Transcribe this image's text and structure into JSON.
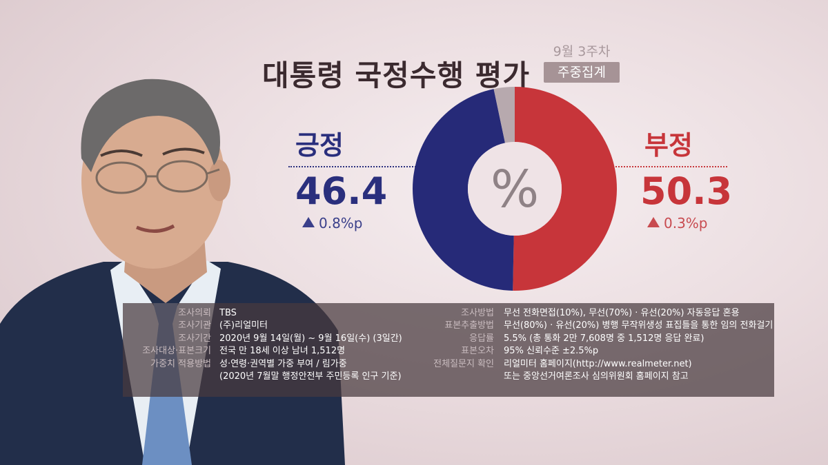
{
  "header": {
    "title": "대통령 국정수행 평가",
    "week": "9월 3주차",
    "aggregate_badge": "주중집계"
  },
  "chart_data": {
    "type": "pie",
    "title": "대통령 국정수행 평가",
    "center_label": "%",
    "slices": [
      {
        "label": "부정",
        "value": 50.3,
        "change": "0.3%p",
        "direction": "up",
        "color": "#c7353a"
      },
      {
        "label": "긍정",
        "value": 46.4,
        "change": "0.8%p",
        "direction": "up",
        "color": "#262a78"
      },
      {
        "label": "",
        "value": 3.3,
        "color": "#b7a9ae"
      }
    ]
  },
  "survey_info": {
    "left": [
      {
        "key": "조사의뢰",
        "value": "TBS"
      },
      {
        "key": "조사기관",
        "value": "(주)리얼미터"
      },
      {
        "key": "조사기간",
        "value": "2020년 9월 14일(월) ~ 9월 16일(수) (3일간)"
      },
      {
        "key": "조사대상·표본크기",
        "value": "전국 만 18세 이상 남녀 1,512명"
      },
      {
        "key": "가중치 적용방법",
        "value": "성·연령·권역별 가중 부여 / 림가중"
      },
      {
        "key": "",
        "value": "(2020년 7월말 행정안전부 주민등록 인구 기준)"
      }
    ],
    "right": [
      {
        "key": "조사방법",
        "value": "무선 전화면접(10%), 무선(70%) · 유선(20%) 자동응답 혼용"
      },
      {
        "key": "표본추출방법",
        "value": "무선(80%) · 유선(20%) 병행 무작위생성 표집틀을 통한 임의 전화걸기"
      },
      {
        "key": "응답률",
        "value": "5.5% (총 통화 2만 7,608명 중 1,512명 응답 완료)"
      },
      {
        "key": "표본오차",
        "value": "95% 신뢰수준 ±2.5%p"
      },
      {
        "key": "전체질문지 확인",
        "value": "리얼미터 홈페이지(http://www.realmeter.net)"
      },
      {
        "key": "",
        "value": "또는 중앙선거여론조사 심의위원회 홈페이지 참고"
      }
    ]
  }
}
